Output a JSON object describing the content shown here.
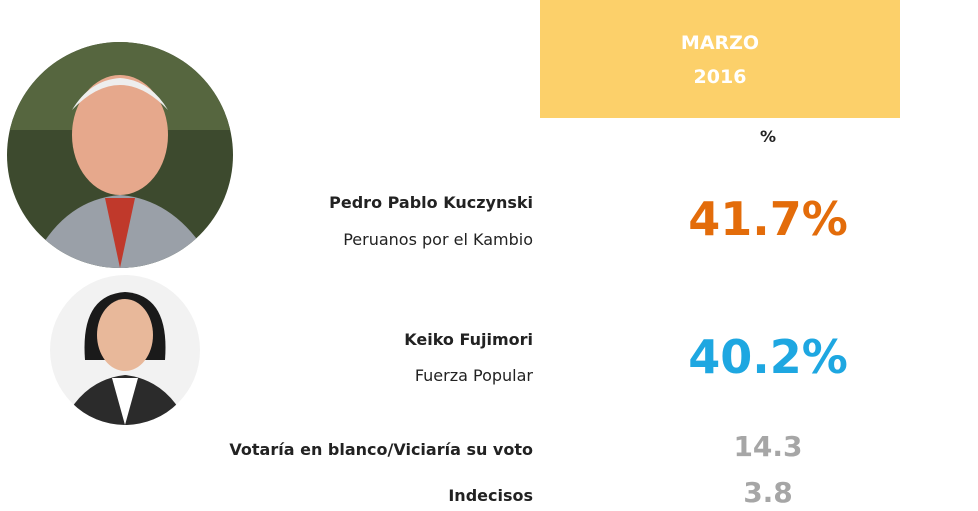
{
  "header": {
    "month": "MARZO",
    "year": "2016",
    "unit": "%"
  },
  "rows": [
    {
      "name": "Pedro Pablo Kuczynski",
      "party": "Peruanos por el Kambio",
      "value": "41.7%",
      "color": "#e36c0a"
    },
    {
      "name": "Keiko Fujimori",
      "party": "Fuerza Popular",
      "value": "40.2%",
      "color": "#1ea7e1"
    },
    {
      "name": "Votaría en blanco/Viciaría su voto",
      "value": "14.3",
      "color": "#a6a6a6"
    },
    {
      "name": "Indecisos",
      "value": "3.8",
      "color": "#a6a6a6"
    }
  ]
}
